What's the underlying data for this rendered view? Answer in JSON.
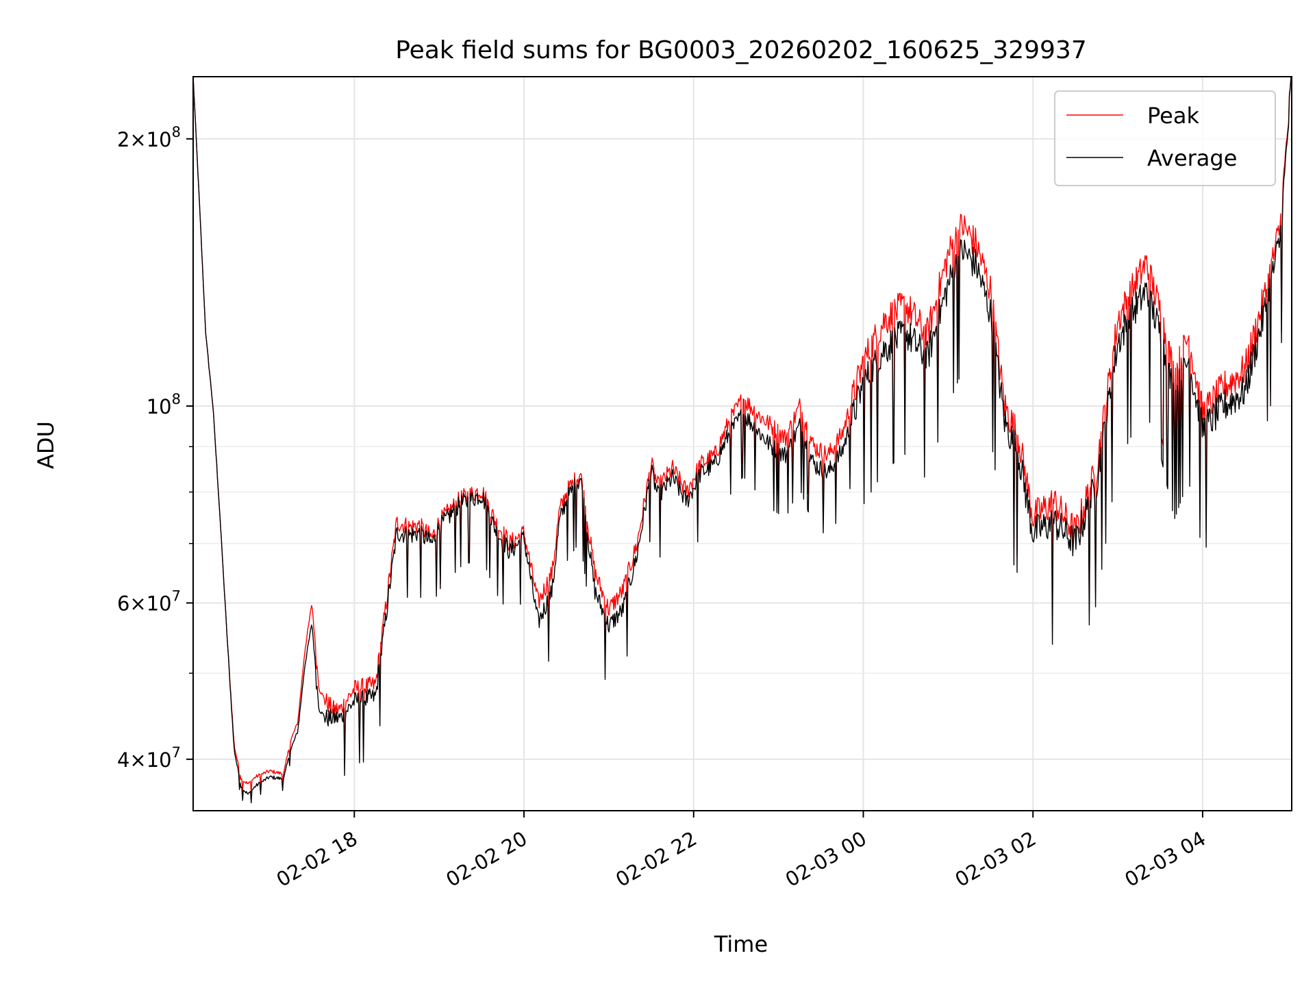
{
  "chart_data": {
    "type": "line",
    "title": "Peak field sums for BG0003_20260202_160625_329937",
    "xlabel": "Time",
    "ylabel": "ADU",
    "yscale": "log",
    "ylim": [
      35000000,
      235000000
    ],
    "xlim": [
      "2026-02-02 16:06",
      "2026-02-03 05:03"
    ],
    "grid": true,
    "legend_position": "top-right",
    "x_ticks": [
      {
        "value": "2026-02-02 18:00",
        "label": "02-02 18"
      },
      {
        "value": "2026-02-02 20:00",
        "label": "02-02 20"
      },
      {
        "value": "2026-02-02 22:00",
        "label": "02-02 22"
      },
      {
        "value": "2026-02-03 00:00",
        "label": "02-03 00"
      },
      {
        "value": "2026-02-03 02:00",
        "label": "02-03 02"
      },
      {
        "value": "2026-02-03 04:00",
        "label": "02-03 04"
      }
    ],
    "y_ticks": [
      {
        "value": 40000000,
        "base": "4×10",
        "exp": "7"
      },
      {
        "value": 60000000,
        "base": "6×10",
        "exp": "7"
      },
      {
        "value": 100000000,
        "base": "10",
        "exp": "8"
      },
      {
        "value": 200000000,
        "base": "2×10",
        "exp": "8"
      }
    ],
    "y_minor_ticks": [
      50000000,
      70000000,
      80000000,
      90000000
    ],
    "x": [
      "2026-02-02 16:06",
      "2026-02-02 16:10",
      "2026-02-02 16:15",
      "2026-02-02 16:20",
      "2026-02-02 16:25",
      "2026-02-02 16:30",
      "2026-02-02 16:35",
      "2026-02-02 16:40",
      "2026-02-02 16:45",
      "2026-02-02 16:50",
      "2026-02-02 17:00",
      "2026-02-02 17:10",
      "2026-02-02 17:15",
      "2026-02-02 17:20",
      "2026-02-02 17:25",
      "2026-02-02 17:30",
      "2026-02-02 17:35",
      "2026-02-02 17:40",
      "2026-02-02 17:45",
      "2026-02-02 17:50",
      "2026-02-02 18:00",
      "2026-02-02 18:15",
      "2026-02-02 18:30",
      "2026-02-02 18:40",
      "2026-02-02 18:45",
      "2026-02-02 18:55",
      "2026-02-02 19:00",
      "2026-02-02 19:15",
      "2026-02-02 19:30",
      "2026-02-02 19:40",
      "2026-02-02 19:50",
      "2026-02-02 20:00",
      "2026-02-02 20:10",
      "2026-02-02 20:20",
      "2026-02-02 20:25",
      "2026-02-02 20:30",
      "2026-02-02 20:40",
      "2026-02-02 20:50",
      "2026-02-02 21:00",
      "2026-02-02 21:10",
      "2026-02-02 21:20",
      "2026-02-02 21:30",
      "2026-02-02 21:35",
      "2026-02-02 21:45",
      "2026-02-02 21:55",
      "2026-02-02 22:05",
      "2026-02-02 22:15",
      "2026-02-02 22:25",
      "2026-02-02 22:35",
      "2026-02-02 22:45",
      "2026-02-02 22:55",
      "2026-02-02 23:05",
      "2026-02-02 23:15",
      "2026-02-02 23:25",
      "2026-02-02 23:35",
      "2026-02-02 23:45",
      "2026-02-03 00:00",
      "2026-02-03 00:15",
      "2026-02-03 00:30",
      "2026-02-03 00:45",
      "2026-02-03 01:00",
      "2026-02-03 01:10",
      "2026-02-03 01:20",
      "2026-02-03 01:30",
      "2026-02-03 01:40",
      "2026-02-03 01:50",
      "2026-02-03 02:00",
      "2026-02-03 02:15",
      "2026-02-03 02:30",
      "2026-02-03 02:45",
      "2026-02-03 03:00",
      "2026-02-03 03:10",
      "2026-02-03 03:20",
      "2026-02-03 03:30",
      "2026-02-03 03:40",
      "2026-02-03 03:50",
      "2026-02-03 04:00",
      "2026-02-03 04:15",
      "2026-02-03 04:30",
      "2026-02-03 04:45",
      "2026-02-03 04:55",
      "2026-02-03 05:03"
    ],
    "series": [
      {
        "name": "Peak",
        "color": "#ff0000",
        "values": [
          235000000,
          175000000,
          120000000,
          100000000,
          75000000,
          55000000,
          41500000,
          38000000,
          37500000,
          38200000,
          38800000,
          38500000,
          42000000,
          44000000,
          53000000,
          60000000,
          48000000,
          46500000,
          45500000,
          45500000,
          48000000,
          48500000,
          74000000,
          73000000,
          73500000,
          71000000,
          74000000,
          78500000,
          80500000,
          74000000,
          70000000,
          72000000,
          60000000,
          65000000,
          76000000,
          80000000,
          84000000,
          65000000,
          59000000,
          62000000,
          70000000,
          86000000,
          81000000,
          85000000,
          80000000,
          86000000,
          88000000,
          96000000,
          102000000,
          98000000,
          95000000,
          92000000,
          100000000,
          90000000,
          88000000,
          93000000,
          112000000,
          125000000,
          130000000,
          120000000,
          148000000,
          160000000,
          152000000,
          135000000,
          100000000,
          92000000,
          75000000,
          78000000,
          72000000,
          85000000,
          125000000,
          135000000,
          145000000,
          128000000,
          108000000,
          120000000,
          98000000,
          105000000,
          110000000,
          135000000,
          160000000,
          235000000
        ]
      },
      {
        "name": "Average",
        "color": "#000000",
        "values": [
          235000000,
          175000000,
          120000000,
          100000000,
          75000000,
          55000000,
          41000000,
          37200000,
          36500000,
          37300000,
          38200000,
          38000000,
          41000000,
          43000000,
          51000000,
          57000000,
          45500000,
          44500000,
          44500000,
          44500000,
          46500000,
          47000000,
          72000000,
          71500000,
          72000000,
          70000000,
          73000000,
          77500000,
          79500000,
          72500000,
          68500000,
          71000000,
          57000000,
          62000000,
          74000000,
          78500000,
          83000000,
          62000000,
          56500000,
          59000000,
          68000000,
          84500000,
          79000000,
          83000000,
          78000000,
          84000000,
          86000000,
          93000000,
          98000000,
          94000000,
          90000000,
          88000000,
          95000000,
          86000000,
          84000000,
          89000000,
          106000000,
          116000000,
          121000000,
          113000000,
          137000000,
          150000000,
          144000000,
          127000000,
          96000000,
          88000000,
          72000000,
          74000000,
          70000000,
          82000000,
          118000000,
          127000000,
          135000000,
          121000000,
          102000000,
          113000000,
          94000000,
          100000000,
          104000000,
          130000000,
          155000000,
          235000000
        ]
      }
    ]
  }
}
